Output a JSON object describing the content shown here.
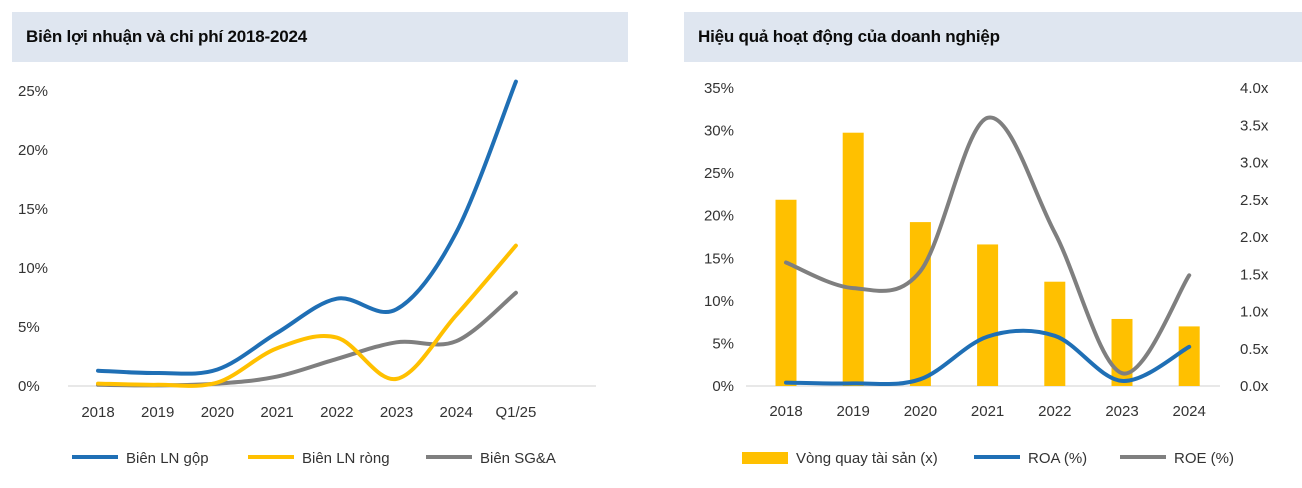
{
  "chart_data": [
    {
      "type": "line",
      "title": "Biên lợi nhuận và chi phí 2018-2024",
      "categories": [
        "2018",
        "2019",
        "2020",
        "2021",
        "2022",
        "2023",
        "2024",
        "Q1/25"
      ],
      "ylim": [
        0,
        25
      ],
      "yticks": [
        "0%",
        "5%",
        "10%",
        "15%",
        "20%",
        "25%"
      ],
      "legend_position": "bottom",
      "series": [
        {
          "name": "Biên LN gộp",
          "color": "#1f6fb5",
          "values": [
            1.3,
            1.1,
            1.4,
            4.5,
            7.4,
            6.5,
            13.0,
            25.8
          ]
        },
        {
          "name": "Biên LN ròng",
          "color": "#ffc000",
          "values": [
            0.2,
            0.1,
            0.3,
            3.2,
            4.1,
            0.6,
            6.0,
            11.9
          ]
        },
        {
          "name": "Biên SG&A",
          "color": "#7f7f7f",
          "values": [
            0.1,
            0.05,
            0.2,
            0.8,
            2.3,
            3.7,
            3.8,
            7.9
          ]
        }
      ]
    },
    {
      "type": "bar+line",
      "title": "Hiệu quả hoạt động của doanh nghiệp",
      "categories": [
        "2018",
        "2019",
        "2020",
        "2021",
        "2022",
        "2023",
        "2024"
      ],
      "ylim_left": [
        0,
        35
      ],
      "yticks_left": [
        "0%",
        "5%",
        "10%",
        "15%",
        "20%",
        "25%",
        "30%",
        "35%"
      ],
      "ylim_right": [
        0,
        4
      ],
      "yticks_right": [
        "0.0x",
        "0.5x",
        "1.0x",
        "1.5x",
        "2.0x",
        "2.5x",
        "3.0x",
        "3.5x",
        "4.0x"
      ],
      "legend_position": "bottom",
      "bars": {
        "name": "Vòng quay tài sản (x)",
        "color": "#ffc000",
        "axis": "right",
        "values": [
          2.5,
          3.4,
          2.2,
          1.9,
          1.4,
          0.9,
          0.8
        ]
      },
      "series": [
        {
          "name": "ROA (%)",
          "color": "#1f6fb5",
          "axis": "left",
          "values": [
            0.4,
            0.3,
            0.8,
            5.8,
            5.9,
            0.6,
            4.6
          ]
        },
        {
          "name": "ROE (%)",
          "color": "#7f7f7f",
          "axis": "left",
          "values": [
            14.5,
            11.5,
            13.5,
            31.5,
            18.0,
            1.5,
            13.0
          ]
        }
      ]
    }
  ]
}
